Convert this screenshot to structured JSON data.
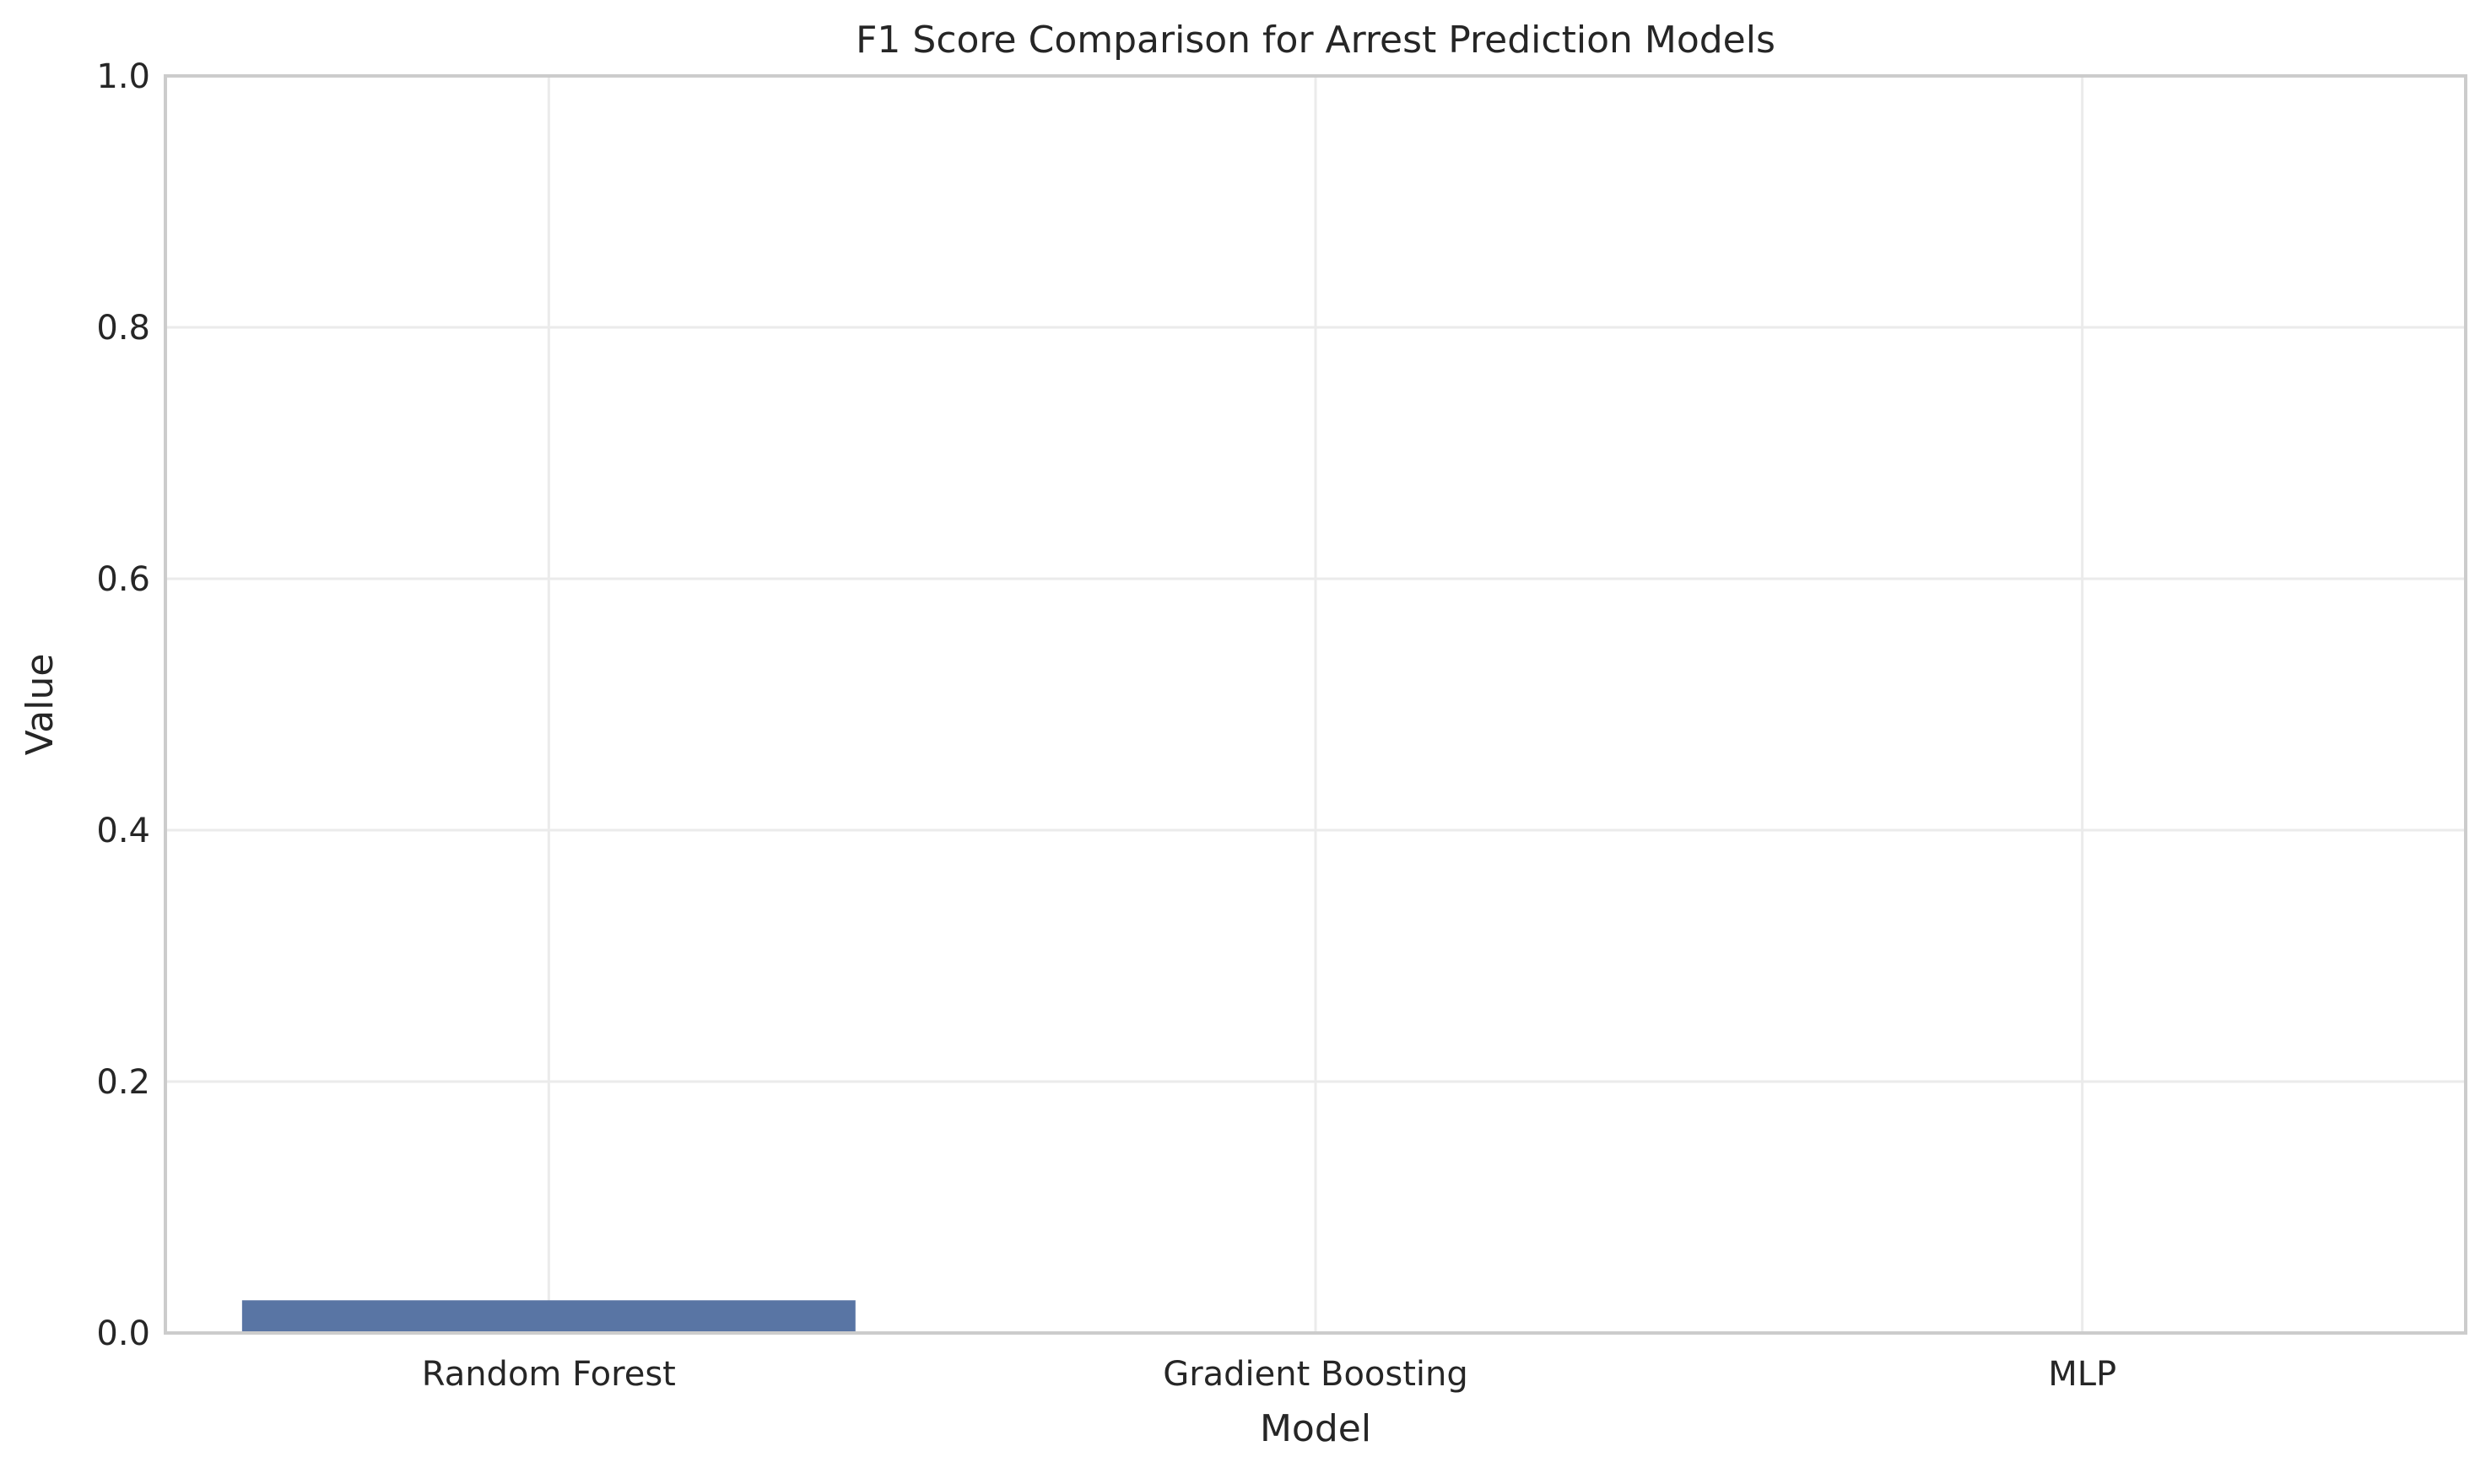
{
  "chart_data": {
    "type": "bar",
    "title": "F1 Score Comparison for Arrest Prediction Models",
    "xlabel": "Model",
    "ylabel": "Value",
    "categories": [
      "Random Forest",
      "Gradient Boosting",
      "MLP"
    ],
    "values": [
      0.026,
      0.0,
      0.0
    ],
    "ylim": [
      0,
      1.0
    ],
    "yticks": [
      "0.0",
      "0.2",
      "0.4",
      "0.6",
      "0.8",
      "1.0"
    ],
    "grid": true,
    "legend": "none",
    "colors": {
      "bar": "#5975a4",
      "grid": "#ebebeb",
      "spine": "#cccccc",
      "text": "#262626"
    }
  }
}
